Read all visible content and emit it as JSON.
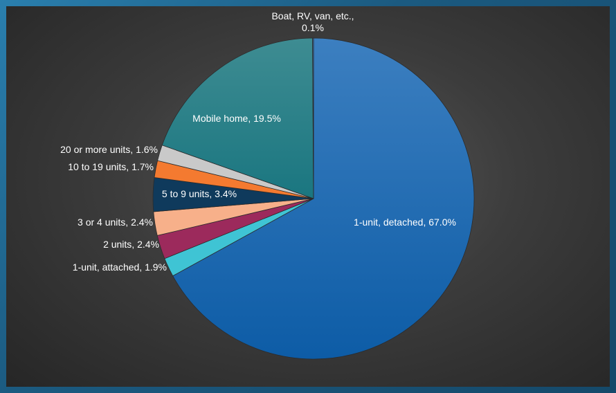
{
  "chart_data": {
    "type": "pie",
    "title": "",
    "slices": [
      {
        "label": "1-unit, detached, 67.0%",
        "name": "1-unit, detached",
        "value": 67.0,
        "color": "#1e6cb0"
      },
      {
        "label": "1-unit, attached, 1.9%",
        "name": "1-unit, attached",
        "value": 1.9,
        "color": "#3fc4d4"
      },
      {
        "label": "2 units, 2.4%",
        "name": "2 units",
        "value": 2.4,
        "color": "#9c2a5c"
      },
      {
        "label": "3 or 4 units, 2.4%",
        "name": "3 or 4 units",
        "value": 2.4,
        "color": "#f7b08a"
      },
      {
        "label": "5 to 9 units, 3.4%",
        "name": "5 to 9 units",
        "value": 3.4,
        "color": "#0f3a5c"
      },
      {
        "label": "10 to 19 units, 1.7%",
        "name": "10 to 19 units",
        "value": 1.7,
        "color": "#f47a30"
      },
      {
        "label": "20 or more units, 1.6%",
        "name": "20 or more units",
        "value": 1.6,
        "color": "#c9c9c9"
      },
      {
        "label": "Mobile home, 19.5%",
        "name": "Mobile home",
        "value": 19.5,
        "color": "#1f7f8a"
      },
      {
        "label": "Boat, RV, van, etc., 0.1%",
        "name": "Boat, RV, van, etc.",
        "value": 0.1,
        "color": "#3a6fa8"
      }
    ]
  }
}
